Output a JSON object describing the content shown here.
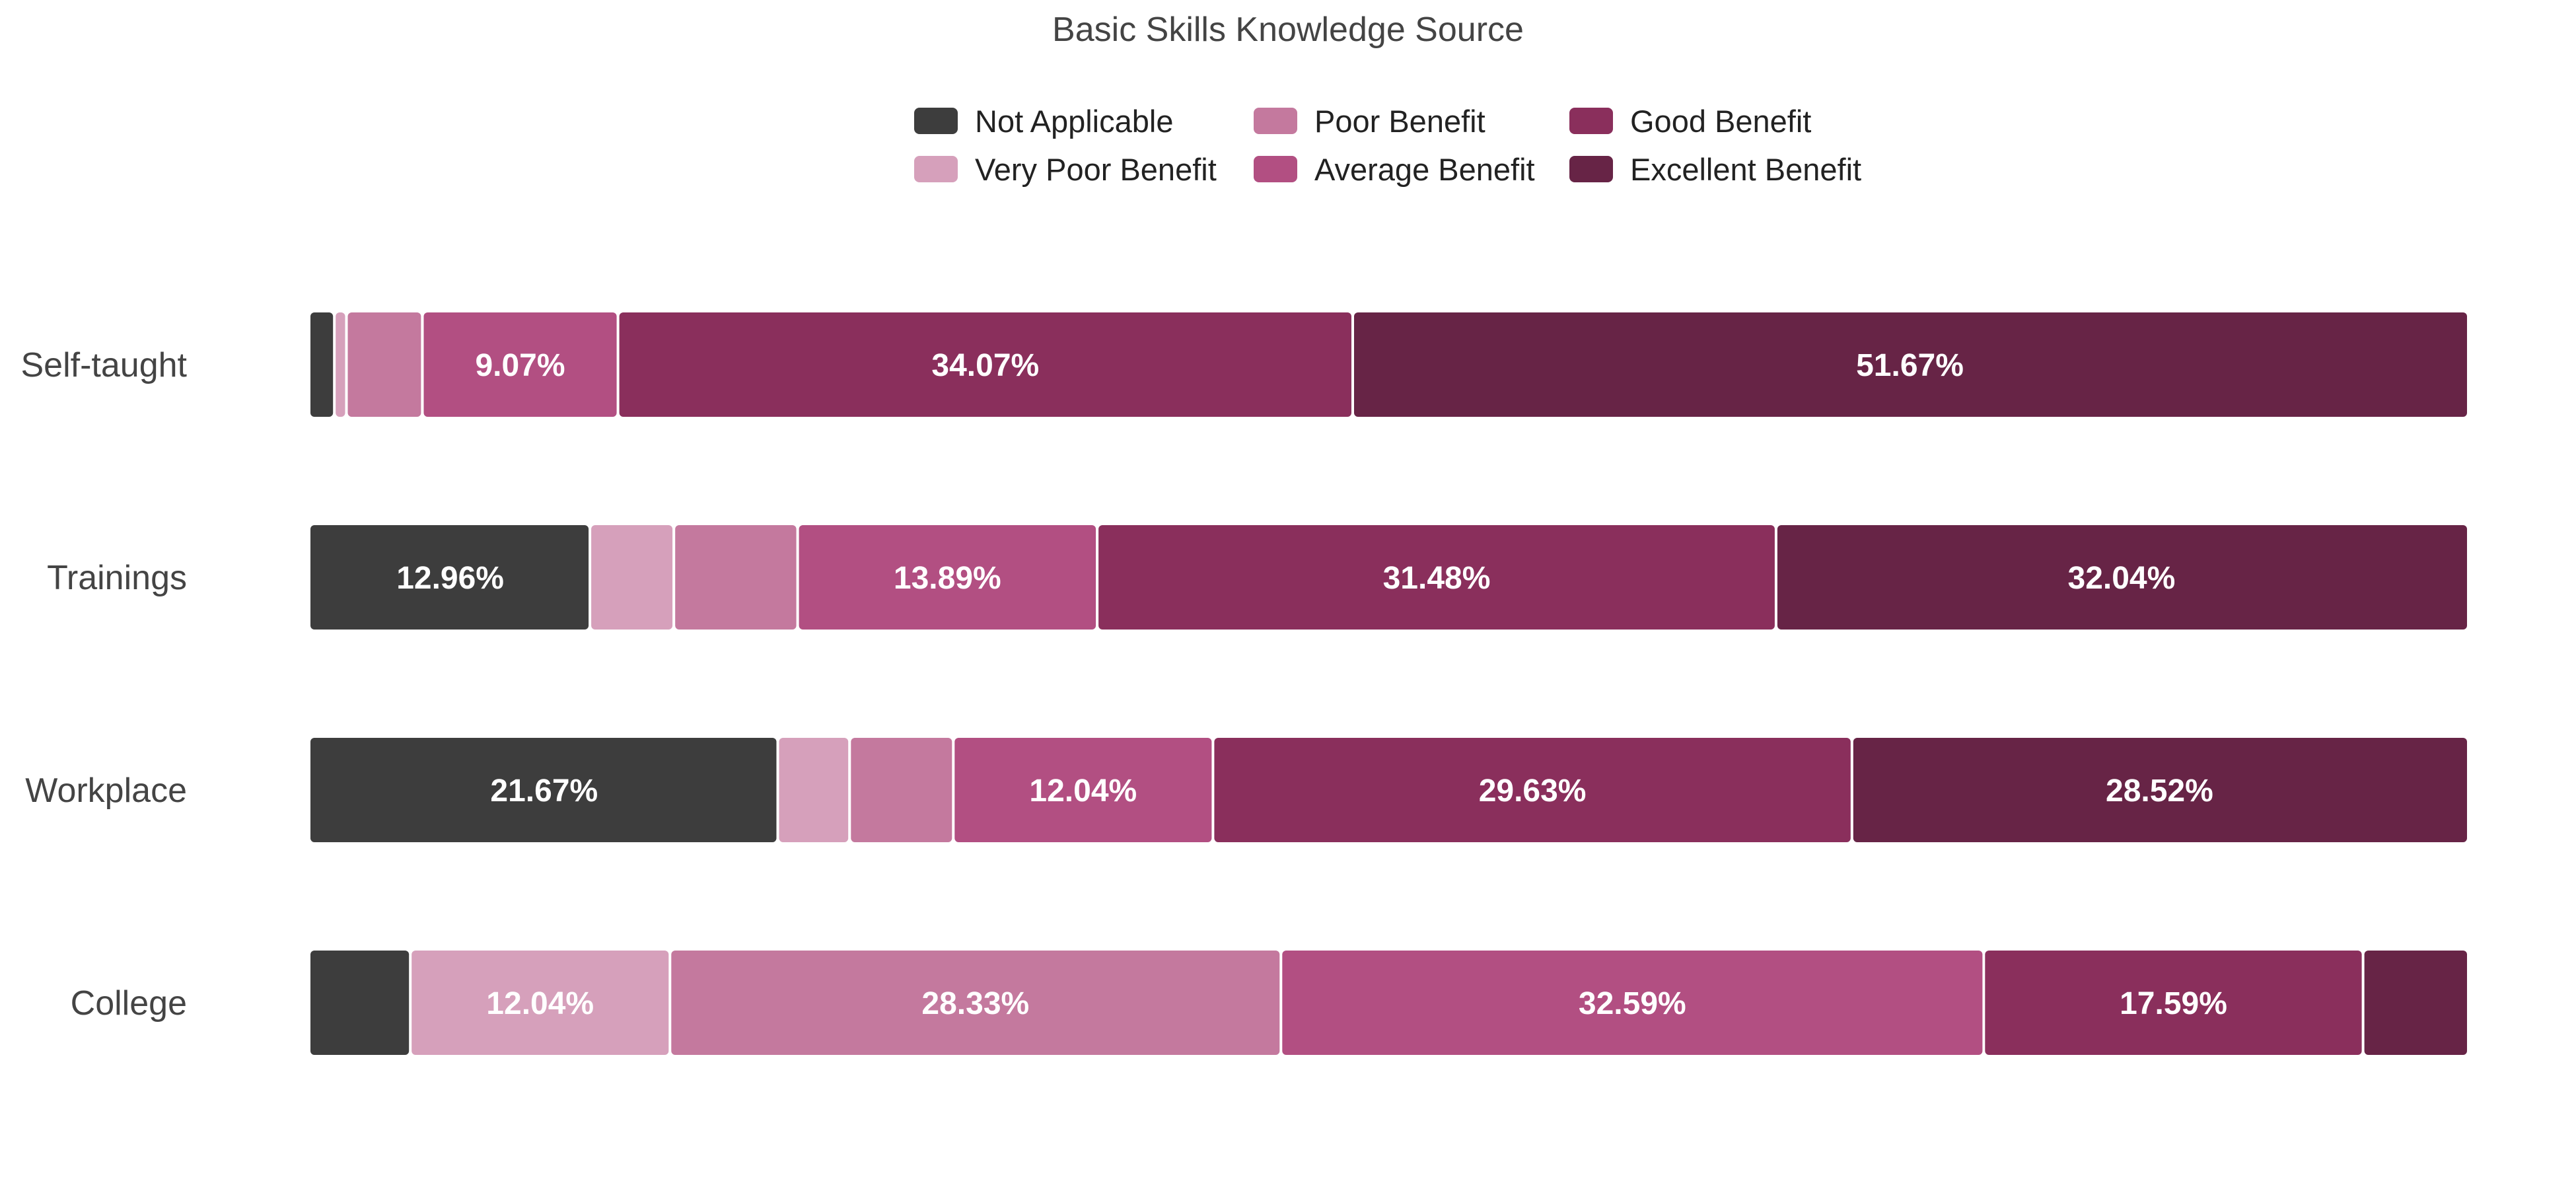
{
  "chart_data": {
    "type": "bar",
    "orientation": "horizontal",
    "stacked": "percent",
    "title": "Basic Skills Knowledge Source",
    "legend_position": "top-center",
    "categories": [
      "Self-taught",
      "Trainings",
      "Workplace",
      "College"
    ],
    "series": [
      {
        "name": "Not Applicable",
        "color": "#3d3d3d",
        "values": [
          1.11,
          12.96,
          21.67,
          4.63
        ]
      },
      {
        "name": "Very Poor Benefit",
        "color": "#d6a0bb",
        "values": [
          0.56,
          3.89,
          3.33,
          12.04
        ]
      },
      {
        "name": "Poor Benefit",
        "color": "#c4799e",
        "values": [
          3.52,
          5.74,
          4.81,
          28.33
        ]
      },
      {
        "name": "Average Benefit",
        "color": "#b24f82",
        "values": [
          9.07,
          13.89,
          12.04,
          32.59
        ]
      },
      {
        "name": "Good Benefit",
        "color": "#8a2f5c",
        "values": [
          34.07,
          31.48,
          29.63,
          17.59
        ]
      },
      {
        "name": "Excellent Benefit",
        "color": "#672446",
        "values": [
          51.67,
          32.04,
          28.52,
          4.82
        ]
      }
    ],
    "data_labels": [
      {
        "category": "Self-taught",
        "series": "Average Benefit",
        "text": "9.07%"
      },
      {
        "category": "Self-taught",
        "series": "Good Benefit",
        "text": "34.07%"
      },
      {
        "category": "Self-taught",
        "series": "Excellent Benefit",
        "text": "51.67%"
      },
      {
        "category": "Trainings",
        "series": "Not Applicable",
        "text": "12.96%"
      },
      {
        "category": "Trainings",
        "series": "Average Benefit",
        "text": "13.89%"
      },
      {
        "category": "Trainings",
        "series": "Good Benefit",
        "text": "31.48%"
      },
      {
        "category": "Trainings",
        "series": "Excellent Benefit",
        "text": "32.04%"
      },
      {
        "category": "Workplace",
        "series": "Not Applicable",
        "text": "21.67%"
      },
      {
        "category": "Workplace",
        "series": "Average Benefit",
        "text": "12.04%"
      },
      {
        "category": "Workplace",
        "series": "Good Benefit",
        "text": "29.63%"
      },
      {
        "category": "Workplace",
        "series": "Excellent Benefit",
        "text": "28.52%"
      },
      {
        "category": "College",
        "series": "Very Poor Benefit",
        "text": "12.04%"
      },
      {
        "category": "College",
        "series": "Poor Benefit",
        "text": "28.33%"
      },
      {
        "category": "College",
        "series": "Average Benefit",
        "text": "32.59%"
      },
      {
        "category": "College",
        "series": "Good Benefit",
        "text": "17.59%"
      }
    ]
  }
}
